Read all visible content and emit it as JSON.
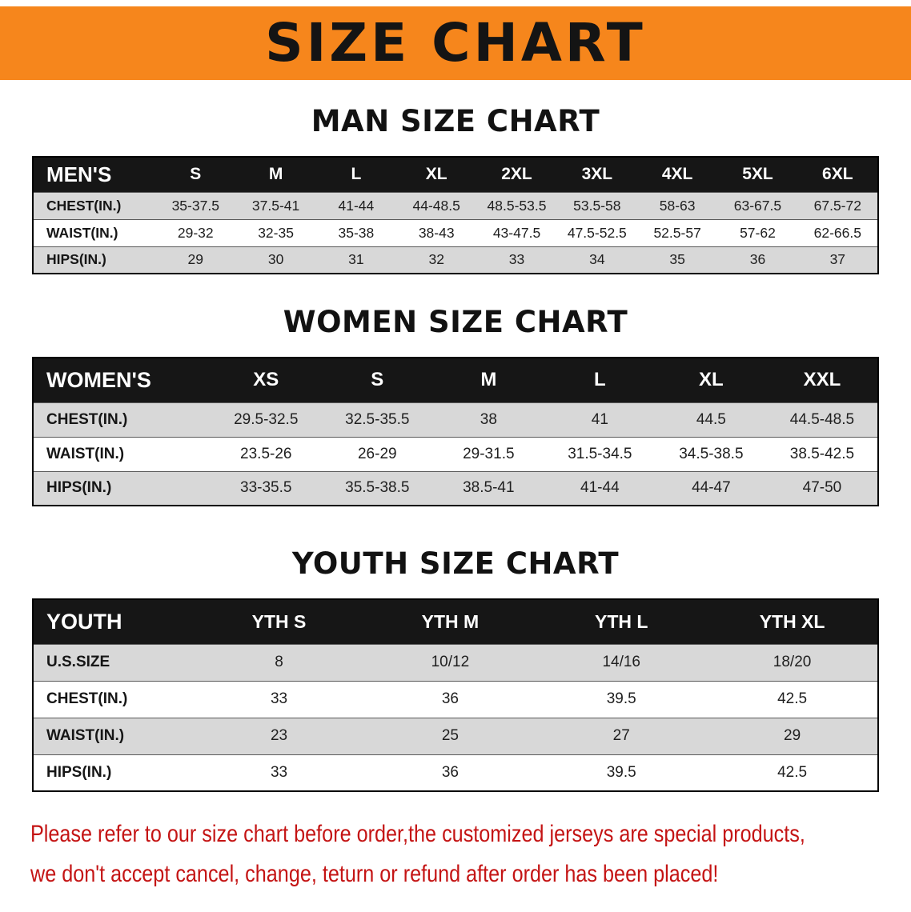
{
  "banner": {
    "title": "SIZE CHART"
  },
  "colors": {
    "banner_bg": "#f6861c",
    "table_header_bg": "#161616",
    "row_stripe": "#d8d8d8",
    "note_red": "#c41414"
  },
  "tables": [
    {
      "id": "men",
      "heading": "MAN SIZE CHART",
      "header": [
        "MEN'S",
        "S",
        "M",
        "L",
        "XL",
        "2XL",
        "3XL",
        "4XL",
        "5XL",
        "6XL"
      ],
      "rows": [
        {
          "label": "CHEST(IN.)",
          "values": [
            "35-37.5",
            "37.5-41",
            "41-44",
            "44-48.5",
            "48.5-53.5",
            "53.5-58",
            "58-63",
            "63-67.5",
            "67.5-72"
          ]
        },
        {
          "label": "WAIST(IN.)",
          "values": [
            "29-32",
            "32-35",
            "35-38",
            "38-43",
            "43-47.5",
            "47.5-52.5",
            "52.5-57",
            "57-62",
            "62-66.5"
          ]
        },
        {
          "label": "HIPS(IN.)",
          "values": [
            "29",
            "30",
            "31",
            "32",
            "33",
            "34",
            "35",
            "36",
            "37"
          ]
        }
      ]
    },
    {
      "id": "women",
      "heading": "WOMEN SIZE CHART",
      "header": [
        "WOMEN'S",
        "XS",
        "S",
        "M",
        "L",
        "XL",
        "XXL"
      ],
      "rows": [
        {
          "label": "CHEST(IN.)",
          "values": [
            "29.5-32.5",
            "32.5-35.5",
            "38",
            "41",
            "44.5",
            "44.5-48.5"
          ]
        },
        {
          "label": "WAIST(IN.)",
          "values": [
            "23.5-26",
            "26-29",
            "29-31.5",
            "31.5-34.5",
            "34.5-38.5",
            "38.5-42.5"
          ]
        },
        {
          "label": "HIPS(IN.)",
          "values": [
            "33-35.5",
            "35.5-38.5",
            "38.5-41",
            "41-44",
            "44-47",
            "47-50"
          ]
        }
      ]
    },
    {
      "id": "youth",
      "heading": "YOUTH SIZE CHART",
      "header": [
        "YOUTH",
        "YTH S",
        "YTH M",
        "YTH L",
        "YTH XL"
      ],
      "rows": [
        {
          "label": "U.S.SIZE",
          "values": [
            "8",
            "10/12",
            "14/16",
            "18/20"
          ]
        },
        {
          "label": "CHEST(IN.)",
          "values": [
            "33",
            "36",
            "39.5",
            "42.5"
          ]
        },
        {
          "label": "WAIST(IN.)",
          "values": [
            "23",
            "25",
            "27",
            "29"
          ]
        },
        {
          "label": "HIPS(IN.)",
          "values": [
            "33",
            "36",
            "39.5",
            "42.5"
          ]
        }
      ]
    }
  ],
  "note": {
    "line1": "Please refer to our size chart before order,the customized jerseys are special products,",
    "line2": "we don't accept cancel, change, teturn or refund after order has been placed!"
  }
}
